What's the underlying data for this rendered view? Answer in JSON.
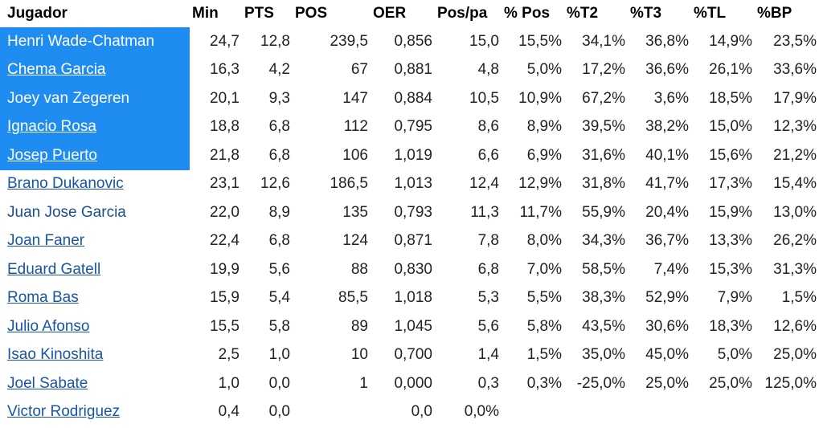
{
  "headers": [
    "Jugador",
    "Min",
    "PTS",
    "POS",
    "OER",
    "Pos/pa",
    "% Pos",
    "%T2",
    "%T3",
    "%TL",
    "%BP"
  ],
  "rows": [
    {
      "name": "Henri Wade-Chatman",
      "link": false,
      "highlighted": true,
      "cells": [
        "24,7",
        "12,8",
        "239,5",
        "0,856",
        "15,0",
        "15,5%",
        "34,1%",
        "36,8%",
        "14,9%",
        "23,5%"
      ]
    },
    {
      "name": "Chema Garcia",
      "link": true,
      "highlighted": true,
      "cells": [
        "16,3",
        "4,2",
        "67",
        "0,881",
        "4,8",
        "5,0%",
        "17,2%",
        "36,6%",
        "26,1%",
        "33,6%"
      ]
    },
    {
      "name": "Joey van Zegeren",
      "link": false,
      "highlighted": true,
      "cells": [
        "20,1",
        "9,3",
        "147",
        "0,884",
        "10,5",
        "10,9%",
        "67,2%",
        "3,6%",
        "18,5%",
        "17,9%"
      ]
    },
    {
      "name": "Ignacio Rosa",
      "link": true,
      "highlighted": true,
      "cells": [
        "18,8",
        "6,8",
        "112",
        "0,795",
        "8,6",
        "8,9%",
        "39,5%",
        "38,2%",
        "15,0%",
        "12,3%"
      ]
    },
    {
      "name": "Josep Puerto",
      "link": true,
      "highlighted": true,
      "cells": [
        "21,8",
        "6,8",
        "106",
        "1,019",
        "6,6",
        "6,9%",
        "31,6%",
        "40,1%",
        "15,6%",
        "21,2%"
      ]
    },
    {
      "name": "Brano Dukanovic",
      "link": true,
      "highlighted": false,
      "cells": [
        "23,1",
        "12,6",
        "186,5",
        "1,013",
        "12,4",
        "12,9%",
        "31,8%",
        "41,7%",
        "17,3%",
        "15,4%"
      ]
    },
    {
      "name": "Juan Jose Garcia",
      "link": false,
      "highlighted": false,
      "cells": [
        "22,0",
        "8,9",
        "135",
        "0,793",
        "11,3",
        "11,7%",
        "55,9%",
        "20,4%",
        "15,9%",
        "13,0%"
      ]
    },
    {
      "name": "Joan Faner",
      "link": true,
      "highlighted": false,
      "cells": [
        "22,4",
        "6,8",
        "124",
        "0,871",
        "7,8",
        "8,0%",
        "34,3%",
        "36,7%",
        "13,3%",
        "26,2%"
      ]
    },
    {
      "name": "Eduard Gatell",
      "link": true,
      "highlighted": false,
      "cells": [
        "19,9",
        "5,6",
        "88",
        "0,830",
        "6,8",
        "7,0%",
        "58,5%",
        "7,4%",
        "15,3%",
        "31,3%"
      ]
    },
    {
      "name": "Roma Bas",
      "link": true,
      "highlighted": false,
      "cells": [
        "15,9",
        "5,4",
        "85,5",
        "1,018",
        "5,3",
        "5,5%",
        "38,3%",
        "52,9%",
        "7,9%",
        "1,5%"
      ]
    },
    {
      "name": "Julio Afonso",
      "link": true,
      "highlighted": false,
      "cells": [
        "15,5",
        "5,8",
        "89",
        "1,045",
        "5,6",
        "5,8%",
        "43,5%",
        "30,6%",
        "18,3%",
        "12,6%"
      ]
    },
    {
      "name": "Isao Kinoshita",
      "link": true,
      "highlighted": false,
      "cells": [
        "2,5",
        "1,0",
        "10",
        "0,700",
        "1,4",
        "1,5%",
        "35,0%",
        "45,0%",
        "5,0%",
        "25,0%"
      ]
    },
    {
      "name": "Joel Sabate",
      "link": true,
      "highlighted": false,
      "cells": [
        "1,0",
        "0,0",
        "1",
        "0,000",
        "0,3",
        "0,3%",
        "-25,0%",
        "25,0%",
        "25,0%",
        "125,0%"
      ]
    },
    {
      "name": "Victor Rodriguez",
      "link": true,
      "highlighted": false,
      "cells": [
        "0,4",
        "0,0",
        "",
        "0,0",
        "0,0%",
        "",
        "",
        "",
        "",
        ""
      ]
    }
  ]
}
